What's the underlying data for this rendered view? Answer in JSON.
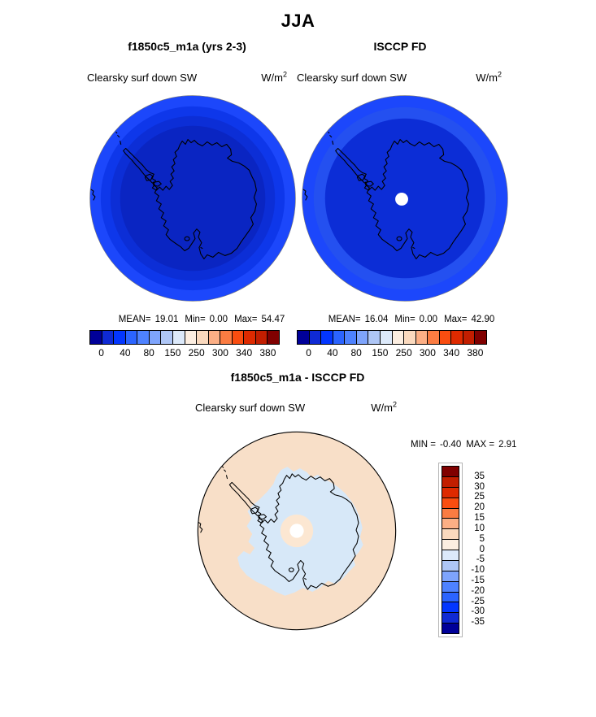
{
  "figure": {
    "season_title": "JJA"
  },
  "panels": [
    {
      "title": "f1850c5_m1a (yrs 2-3)",
      "variable": "Clearsky surf down SW",
      "units_base": "W/m",
      "units_exp": "2",
      "stats": {
        "mean_label": "MEAN=",
        "mean": "19.01",
        "min_label": "Min=",
        "min": "0.00",
        "max_label": "Max=",
        "max": "54.47"
      }
    },
    {
      "title": "ISCCP FD",
      "variable": "Clearsky surf down SW",
      "units_base": "W/m",
      "units_exp": "2",
      "stats": {
        "mean_label": "MEAN=",
        "mean": "16.04",
        "min_label": "Min=",
        "min": "0.00",
        "max_label": "Max=",
        "max": "42.90"
      }
    }
  ],
  "diff": {
    "title": "f1850c5_m1a - ISCCP FD",
    "variable": "Clearsky surf down SW",
    "units_base": "W/m",
    "units_exp": "2",
    "min_label": "MIN =",
    "min": "-0.40",
    "max_label": "MAX =",
    "max": "2.91"
  },
  "colorbar": {
    "ticks": [
      "0",
      "40",
      "80",
      "150",
      "250",
      "300",
      "340",
      "380"
    ],
    "colors": [
      "#000099",
      "#0F2AD4",
      "#0336FF",
      "#2B64FF",
      "#4E82FF",
      "#7EA4FC",
      "#AEC6F6",
      "#DCE9FA",
      "#FCEEE1",
      "#FAD9BE",
      "#FCAF85",
      "#FB7C42",
      "#F94D10",
      "#DE2A00",
      "#C21E00",
      "#800000"
    ]
  },
  "diff_colorbar": {
    "labels": [
      "35",
      "30",
      "25",
      "20",
      "15",
      "10",
      "5",
      "0",
      "-5",
      "-10",
      "-15",
      "-20",
      "-25",
      "-30",
      "-35"
    ],
    "colors": [
      "#800000",
      "#C21E00",
      "#DE2A00",
      "#F94D10",
      "#FB7C42",
      "#FCAF85",
      "#FAD9BE",
      "#FCEEE1",
      "#DCE9FA",
      "#AEC6F6",
      "#7EA4FC",
      "#4E82FF",
      "#2B64FF",
      "#0336FF",
      "#0F2AD4",
      "#000099"
    ]
  },
  "maps": {
    "coast_color": "#000000",
    "model": {
      "rings": [
        "#1C47FB",
        "#0E37EA",
        "#0C2ED6",
        "#0A25C2"
      ]
    },
    "obs": {
      "rings": [
        "#1C47FB",
        "#2450F0",
        "#0C2DD6"
      ],
      "pole_dot": "#FFFFFF"
    },
    "diff": {
      "background": "#F8DFC8",
      "negative_region": "#D7E8F8",
      "center_ring": "#FCE7D2",
      "pole_dot": "#FFFFFF",
      "outline": "#000000"
    }
  },
  "chart_data": [
    {
      "type": "heatmap",
      "subtype": "south-polar-stereographic-map",
      "season": "JJA",
      "title": "f1850c5_m1a (yrs 2-3)",
      "variable": "Clearsky surf down SW",
      "units": "W/m2",
      "stats": {
        "mean": 19.01,
        "min": 0.0,
        "max": 54.47
      },
      "contour_levels": [
        0,
        20,
        40,
        60,
        80,
        100,
        150,
        200,
        250,
        275,
        300,
        320,
        340,
        360,
        380
      ],
      "labeled_levels": [
        0,
        40,
        80,
        150,
        250,
        300,
        340,
        380
      ],
      "colormap": "blue-to-red 16 steps",
      "pattern": "concentric blue shading, ~60-80 W/m2 at equatorward edge decreasing to ~20-40 W/m2 over Antarctic interior"
    },
    {
      "type": "heatmap",
      "subtype": "south-polar-stereographic-map",
      "season": "JJA",
      "title": "ISCCP FD",
      "variable": "Clearsky surf down SW",
      "units": "W/m2",
      "stats": {
        "mean": 16.04,
        "min": 0.0,
        "max": 42.9
      },
      "contour_levels": [
        0,
        20,
        40,
        60,
        80,
        100,
        150,
        200,
        250,
        275,
        300,
        320,
        340,
        360,
        380
      ],
      "labeled_levels": [
        0,
        40,
        80,
        150,
        250,
        300,
        340,
        380
      ],
      "colormap": "blue-to-red 16 steps",
      "pattern": "same concentric blue shading as model with a white missing-data dot at the pole"
    },
    {
      "type": "heatmap",
      "subtype": "south-polar-stereographic-map",
      "season": "JJA",
      "title": "f1850c5_m1a - ISCCP FD",
      "variable": "Clearsky surf down SW",
      "units": "W/m2",
      "stats": {
        "min": -0.4,
        "max": 2.91
      },
      "contour_levels": [
        -35,
        -30,
        -25,
        -20,
        -15,
        -10,
        -5,
        0,
        5,
        10,
        15,
        20,
        25,
        30,
        35
      ],
      "colormap": "red(positive)-to-blue(negative) 16 steps, vertical labelbar",
      "pattern": "0 to +5 W/m2 (pale orange) over surrounding ocean, -5 to 0 W/m2 (pale blue) over Antarctic interior, small 0 to +5 ring and white dot at the pole"
    }
  ]
}
